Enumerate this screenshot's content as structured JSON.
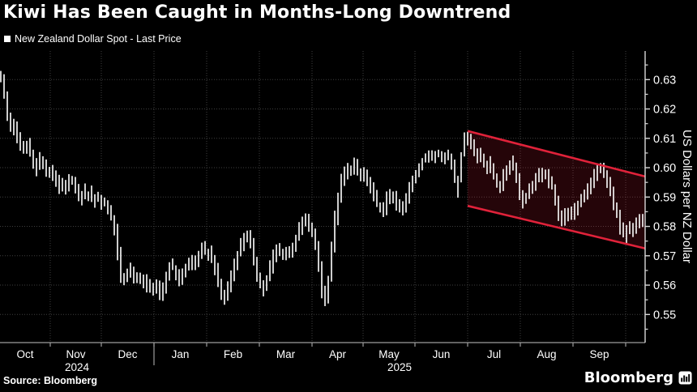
{
  "title": "Kiwi Has Been Caught in Months-Long Downtrend",
  "legend": {
    "label": "New Zealand Dollar Spot - Last Price",
    "marker_color": "#ffffff"
  },
  "source": "Source: Bloomberg",
  "brand": {
    "wordmark": "Bloomberg",
    "terminal_icon": "bar-chart-in-rounded-square"
  },
  "colors": {
    "background": "#000000",
    "text": "#ffffff",
    "grid": "#3f3f3f",
    "bars": "#f2f2f2",
    "x_axis_line": "#9c9c9c",
    "y_axis_line": "#d8d8d8",
    "channel_line": "#e0223a",
    "channel_fill": "rgba(220,32,56,0.17)"
  },
  "chart_data": {
    "type": "line",
    "render_style": "high-low tick bars",
    "title": "New Zealand Dollar Spot - Last Price",
    "xlabel": "",
    "ylabel": "US Dollars per NZ Dollar",
    "ylim": [
      0.545,
      0.64
    ],
    "y_ticks": [
      0.63,
      0.62,
      0.61,
      0.6,
      0.59,
      0.58,
      0.57,
      0.56,
      0.55
    ],
    "y_minor_step": 0.005,
    "grid": true,
    "x_months": [
      "Oct",
      "Nov",
      "Dec",
      "Jan",
      "Feb",
      "Mar",
      "Apr",
      "May",
      "Jun",
      "Jul",
      "Aug",
      "Sep"
    ],
    "x_years": [
      {
        "label": "2024",
        "first_month_index": 0,
        "last_month_index": 2
      },
      {
        "label": "2025",
        "first_month_index": 3,
        "last_month_index": 11
      }
    ],
    "series": [
      {
        "name": "New Zealand Dollar Spot - Last Price",
        "color": "#f2f2f2",
        "sampling": "uniform from Oct 2024 through late Sep 2025, ~1.5 trading days per sample",
        "values": [
          0.632,
          0.6275,
          0.621,
          0.6135,
          0.6155,
          0.6115,
          0.6085,
          0.6065,
          0.6065,
          0.6085,
          0.6025,
          0.5995,
          0.6035,
          0.6015,
          0.5995,
          0.5985,
          0.5995,
          0.5965,
          0.5935,
          0.5945,
          0.5925,
          0.5945,
          0.5965,
          0.5935,
          0.5905,
          0.5895,
          0.5925,
          0.5895,
          0.5915,
          0.5885,
          0.5905,
          0.5875,
          0.5885,
          0.5865,
          0.5845,
          0.5815,
          0.5765,
          0.5645,
          0.5615,
          0.5635,
          0.5655,
          0.5625,
          0.5615,
          0.5635,
          0.5605,
          0.5615,
          0.5585,
          0.5595,
          0.5605,
          0.5575,
          0.5565,
          0.5605,
          0.5655,
          0.5675,
          0.5645,
          0.5615,
          0.5635,
          0.5655,
          0.5665,
          0.5685,
          0.5675,
          0.5695,
          0.5715,
          0.5725,
          0.5705,
          0.5715,
          0.5675,
          0.5625,
          0.5585,
          0.5555,
          0.5575,
          0.5615,
          0.5655,
          0.5695,
          0.5725,
          0.5755,
          0.5775,
          0.5755,
          0.5715,
          0.5655,
          0.5615,
          0.5585,
          0.5595,
          0.5645,
          0.5685,
          0.5715,
          0.5725,
          0.5705,
          0.5715,
          0.5705,
          0.5725,
          0.5745,
          0.5775,
          0.5805,
          0.5825,
          0.5815,
          0.5785,
          0.5755,
          0.5715,
          0.5625,
          0.5535,
          0.5565,
          0.5685,
          0.5785,
          0.5875,
          0.5935,
          0.5975,
          0.5995,
          0.5985,
          0.6015,
          0.5995,
          0.5965,
          0.5985,
          0.5965,
          0.5935,
          0.5915,
          0.5885,
          0.5865,
          0.5845,
          0.5875,
          0.5915,
          0.5905,
          0.5885,
          0.5865,
          0.5855,
          0.5875,
          0.5915,
          0.5945,
          0.5965,
          0.5995,
          0.6015,
          0.6035,
          0.6025,
          0.6045,
          0.6035,
          0.6055,
          0.6045,
          0.6025,
          0.6045,
          0.6025,
          0.6005,
          0.5915,
          0.6015,
          0.6075,
          0.6115,
          0.6095,
          0.6065,
          0.6035,
          0.6055,
          0.6025,
          0.5995,
          0.6015,
          0.5985,
          0.5955,
          0.5935,
          0.5955,
          0.5985,
          0.6005,
          0.6025,
          0.5995,
          0.5935,
          0.5885,
          0.5895,
          0.5915,
          0.5935,
          0.5955,
          0.5975,
          0.5965,
          0.5985,
          0.5955,
          0.5945,
          0.5925,
          0.5865,
          0.5815,
          0.5825,
          0.5855,
          0.5835,
          0.5845,
          0.5865,
          0.5885,
          0.5905,
          0.5925,
          0.5945,
          0.5965,
          0.5985,
          0.6005,
          0.5985,
          0.5965,
          0.5935,
          0.5895,
          0.5855,
          0.5815,
          0.5775,
          0.5765,
          0.5795,
          0.5775,
          0.5805,
          0.5815,
          0.5825
        ]
      }
    ],
    "annotations": {
      "downtrend_channel": {
        "description": "red parallel descending channel highlighting the months-long downtrend, early Jul 2025 to right edge",
        "start_sample_index": 144,
        "top_start_value": 0.6125,
        "top_end_value": 0.597,
        "bottom_start_value": 0.587,
        "bottom_end_value": 0.5725,
        "line_color": "#e0223a",
        "fill_color": "rgba(220,32,56,0.17)"
      }
    },
    "legend_position": "top-left"
  }
}
